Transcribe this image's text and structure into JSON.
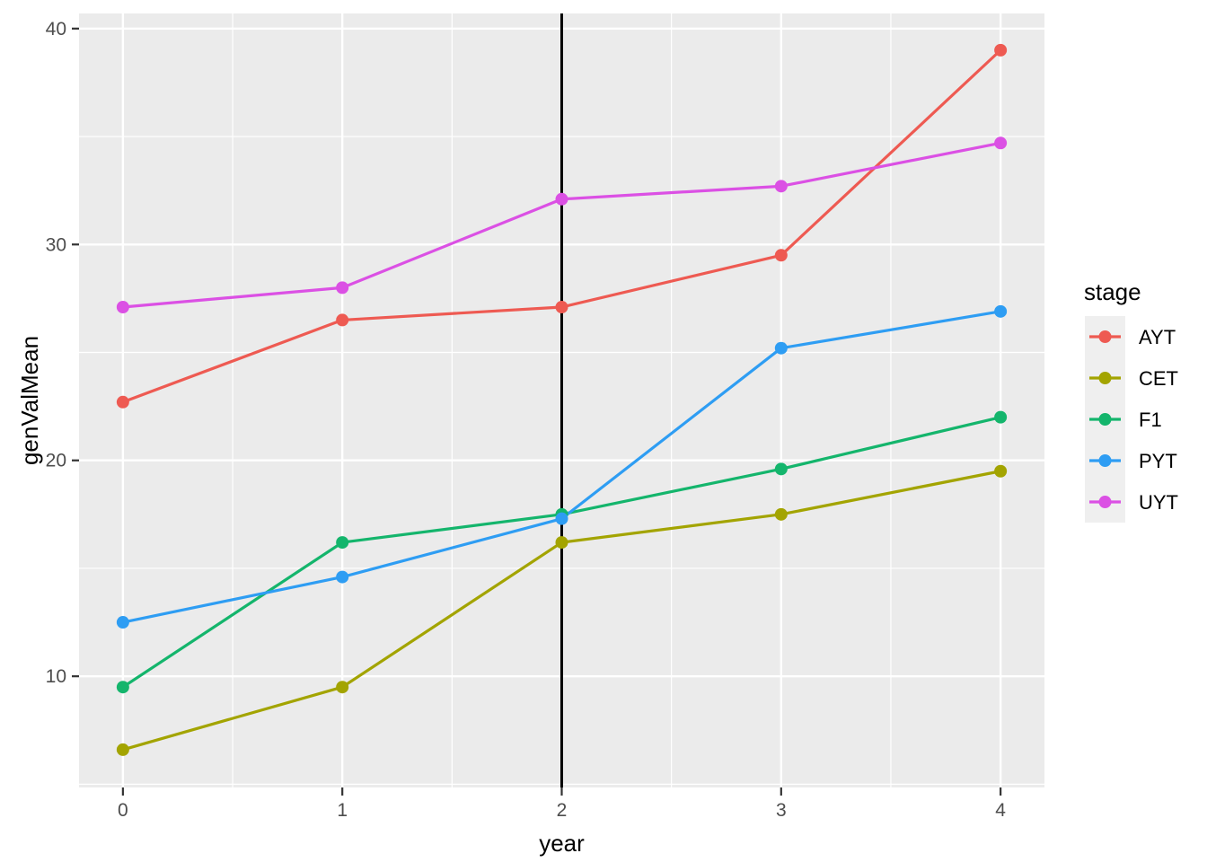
{
  "figure": {
    "background": "#FFFFFF",
    "panel_background": "#EBEBEB",
    "grid_color": "#FFFFFF",
    "tick_mark_color": "#333333",
    "axis_text_color": "#4D4D4D",
    "axis_title_color": "#000000",
    "legend_key_fill": "#EFEFEF",
    "vline_color": "#000000"
  },
  "chart_data": {
    "type": "line",
    "title": "",
    "xlabel": "year",
    "ylabel": "genValMean",
    "x": [
      0,
      1,
      2,
      3,
      4
    ],
    "series": [
      {
        "name": "AYT",
        "color": "#EE5A52",
        "values": [
          22.7,
          26.5,
          27.1,
          29.5,
          39.0
        ]
      },
      {
        "name": "CET",
        "color": "#A3A400",
        "values": [
          6.6,
          9.5,
          16.2,
          17.5,
          19.5
        ]
      },
      {
        "name": "F1",
        "color": "#14B56C",
        "values": [
          9.5,
          16.2,
          17.5,
          19.6,
          22.0
        ]
      },
      {
        "name": "PYT",
        "color": "#2E9DF3",
        "values": [
          12.5,
          14.6,
          17.3,
          25.2,
          26.9
        ]
      },
      {
        "name": "UYT",
        "color": "#DB50E4",
        "values": [
          27.1,
          28.0,
          32.1,
          32.7,
          34.7
        ]
      }
    ],
    "x_ticks": [
      "0",
      "1",
      "2",
      "3",
      "4"
    ],
    "y_ticks": [
      "10",
      "20",
      "30",
      "40"
    ],
    "xlim": [
      -0.2,
      4.2
    ],
    "ylim": [
      4.85,
      40.7
    ],
    "vline_x": 2,
    "grid": "major+minor",
    "legend": {
      "title": "stage",
      "position": "right"
    }
  }
}
